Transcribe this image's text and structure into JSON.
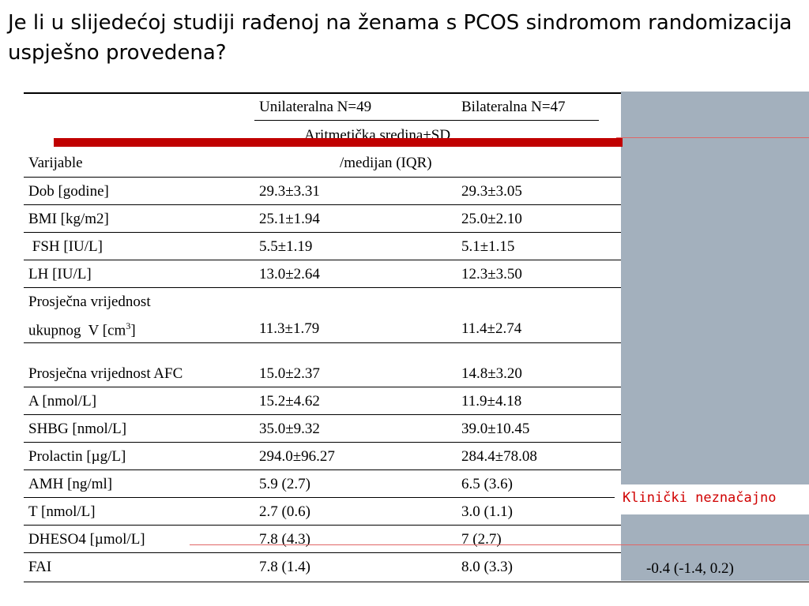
{
  "title": "Je li u slijedećoj studiji rađenoj na ženama s PCOS sindromom randomizacija uspješno provedena?",
  "table": {
    "header": {
      "col1": "Unilateralna N=49",
      "col2": "Bilateralna N=47",
      "subheader_line1": "Aritmetička sredina±SD",
      "subheader_line2": "/medijan (IQR)",
      "variables_label": "Varijable"
    },
    "rows": [
      {
        "var": "Dob [godine]",
        "uni": "29.3±3.31",
        "bi": "29.3±3.05"
      },
      {
        "var": "BMI [kg/m2]",
        "uni": "25.1±1.94",
        "bi": "25.0±2.10"
      },
      {
        "var": " FSH [IU/L]",
        "uni": "5.5±1.19",
        "bi": "5.1±1.15"
      },
      {
        "var": "LH [IU/L]",
        "uni": "13.0±2.64",
        "bi": "12.3±3.50"
      },
      {
        "var_line1": "Prosječna vrijednost",
        "var_line2": "ukupnog  V [cm",
        "var_sup": "3",
        "var_end": "]",
        "uni": "11.3±1.79",
        "bi": "11.4±2.74"
      },
      {
        "var": "Prosječna vrijednost AFC",
        "uni": "15.0±2.37",
        "bi": "14.8±3.20"
      },
      {
        "var": "A [nmol/L]",
        "uni": "15.2±4.62",
        "bi": "11.9±4.18"
      },
      {
        "var": "SHBG [nmol/L]",
        "uni": "35.0±9.32",
        "bi": "39.0±10.45"
      },
      {
        "var": "Prolactin [µg/L]",
        "uni": "294.0±96.27",
        "bi": "284.4±78.08"
      },
      {
        "var": "AMH [ng/ml]",
        "uni": "5.9 (2.7)",
        "bi": "6.5 (3.6)"
      },
      {
        "var": "T [nmol/L]",
        "uni": "2.7 (0.6)",
        "bi": "3.0 (1.1)"
      },
      {
        "var": "DHESO4 [µmol/L]",
        "uni": "7.8 (4.3)",
        "bi": "7 (2.7)"
      },
      {
        "var": "FAI",
        "uni": "7.8 (1.4)",
        "bi": "8.0 (3.3)",
        "extra": "-0.4 (-1.4, 0.2)"
      }
    ]
  },
  "overlay": {
    "note": "Klinički neznačajno",
    "panel_color": "#a3b0bd",
    "note_color": "#d00000",
    "bar_color": "#c00000"
  }
}
